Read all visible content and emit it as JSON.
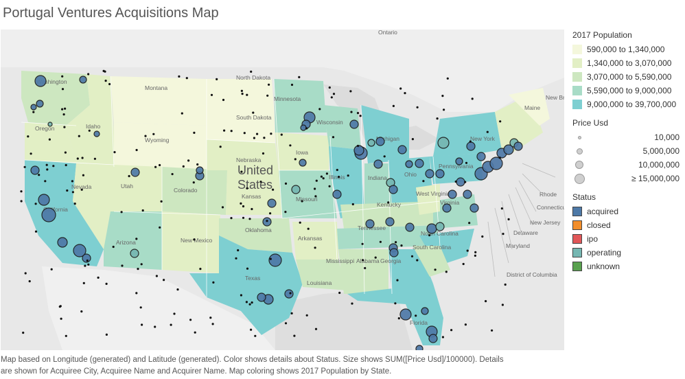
{
  "title": "Portugal Ventures Acquisitions Map",
  "map": {
    "country_label_line1": "United",
    "country_label_line2": "States",
    "region_labels": [
      {
        "text": "Ontario"
      },
      {
        "text": "Washington"
      },
      {
        "text": "Montana"
      },
      {
        "text": "North Dakota"
      },
      {
        "text": "Minnesota"
      },
      {
        "text": "Oregon"
      },
      {
        "text": "Idaho"
      },
      {
        "text": "South Dakota"
      },
      {
        "text": "Wyoming"
      },
      {
        "text": "Wisconsin"
      },
      {
        "text": "Michigan"
      },
      {
        "text": "Nebraska"
      },
      {
        "text": "Iowa"
      },
      {
        "text": "Nevada"
      },
      {
        "text": "Utah"
      },
      {
        "text": "Colorado"
      },
      {
        "text": "Illinois"
      },
      {
        "text": "Indiana"
      },
      {
        "text": "Ohio"
      },
      {
        "text": "Kansas"
      },
      {
        "text": "Missouri"
      },
      {
        "text": "Kentucky"
      },
      {
        "text": "West Virginia"
      },
      {
        "text": "Virginia"
      },
      {
        "text": "California"
      },
      {
        "text": "Arizona"
      },
      {
        "text": "New Mexico"
      },
      {
        "text": "Oklahoma"
      },
      {
        "text": "Arkansas"
      },
      {
        "text": "Tennessee"
      },
      {
        "text": "North Carolina"
      },
      {
        "text": "South Carolina"
      },
      {
        "text": "Mississippi"
      },
      {
        "text": "Alabama"
      },
      {
        "text": "Georgia"
      },
      {
        "text": "Texas"
      },
      {
        "text": "Louisiana"
      },
      {
        "text": "Florida"
      },
      {
        "text": "Maine"
      },
      {
        "text": "New York"
      },
      {
        "text": "Pennsylvania"
      },
      {
        "text": "New Brunswick"
      },
      {
        "text": "Rhode"
      },
      {
        "text": "Connecticut"
      },
      {
        "text": "New Jersey"
      },
      {
        "text": "Delaware"
      },
      {
        "text": "Maryland"
      },
      {
        "text": "District of Columbia"
      }
    ]
  },
  "legend": {
    "population": {
      "title": "2017 Population",
      "items": [
        {
          "label": "590,000 to 1,340,000",
          "color": "#f4f7dc"
        },
        {
          "label": "1,340,000 to 3,070,000",
          "color": "#e2efc5"
        },
        {
          "label": "3,070,000 to 5,590,000",
          "color": "#cde7c0"
        },
        {
          "label": "5,590,000 to 9,000,000",
          "color": "#a8dcc7"
        },
        {
          "label": "9,000,000 to 39,700,000",
          "color": "#7ecfd1"
        }
      ]
    },
    "price": {
      "title": "Price Usd",
      "items": [
        {
          "label": "10,000",
          "size": 3
        },
        {
          "label": "5,000,000",
          "size": 7
        },
        {
          "label": "10,000,000",
          "size": 10
        },
        {
          "label": "≥ 15,000,000",
          "size": 13
        }
      ]
    },
    "status": {
      "title": "Status",
      "items": [
        {
          "label": "acquired",
          "color": "#4e79a7"
        },
        {
          "label": "closed",
          "color": "#f28e2b"
        },
        {
          "label": "ipo",
          "color": "#e15759"
        },
        {
          "label": "operating",
          "color": "#76b7b2"
        },
        {
          "label": "unknown",
          "color": "#59a14f"
        }
      ]
    }
  },
  "footer": {
    "line1": "Map based on Longitude (generated) and Latitude (generated).  Color shows details about Status.  Size shows SUM([Price Usd]/100000).  Details",
    "line2": "are shown for Acquiree City, Acquiree Name and Acquirer Name. Map coloring shows 2017 Population by State."
  }
}
